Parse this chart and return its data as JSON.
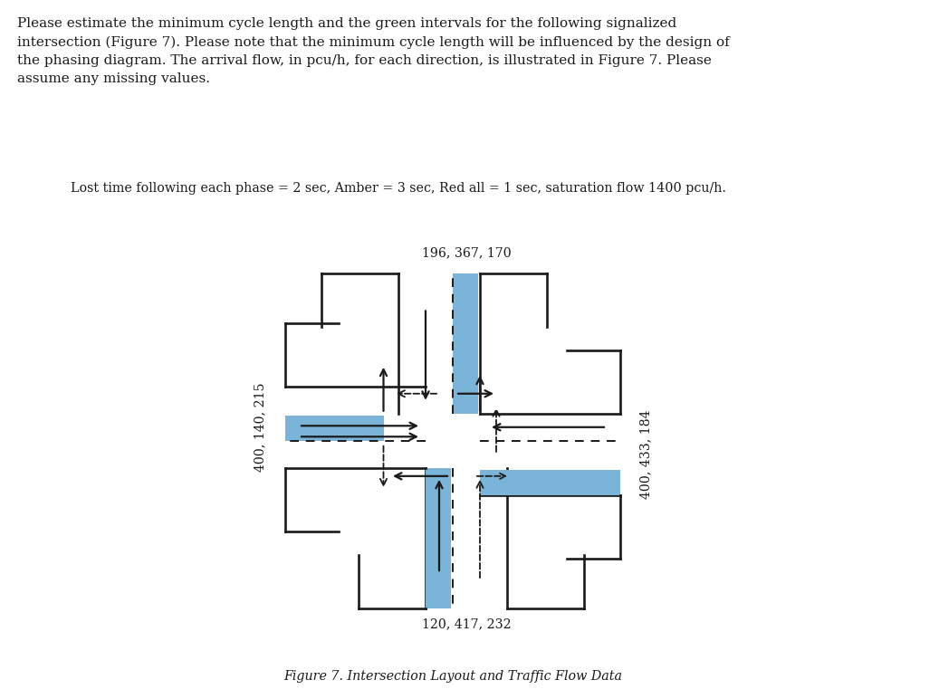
{
  "title_text": "Please estimate the minimum cycle length and the green intervals for the following signalized\nintersection (Figure 7). Please note that the minimum cycle length will be influenced by the design of\nthe phasing diagram. The arrival flow, in pcu/h, for each direction, is illustrated in Figure 7. Please\nassume any missing values.",
  "subtitle_text": "Lost time following each phase = 2 sec, Amber = 3 sec, Red all = 1 sec, saturation flow 1400 pcu/h.",
  "north_label": "196, 367, 170",
  "south_label": "120, 417, 232",
  "west_label": "400, 140, 215",
  "east_label": "400, 433, 184",
  "figure_caption": "Figure 7. Intersection Layout and Traffic Flow Data",
  "blue_color": "#7ab4d8",
  "line_color": "#1a1a1a",
  "bg_color": "#ffffff",
  "text_color": "#1a1a1a"
}
